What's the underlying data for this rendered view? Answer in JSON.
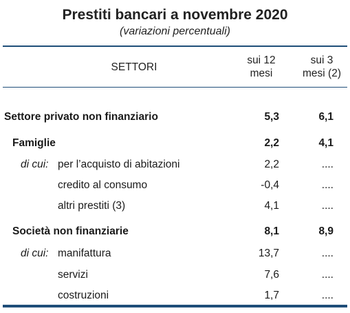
{
  "title": "Prestiti bancari a novembre 2020",
  "subtitle": "(variazioni percentuali)",
  "header": {
    "settori": "SETTORI",
    "col1_line1": "sui 12",
    "col1_line2": "mesi",
    "col2_line1": "sui 3",
    "col2_line2": "mesi (2)"
  },
  "rows": [
    {
      "prefix": "",
      "label": "Settore privato non finanziario",
      "v12": "5,3",
      "v3": "6,1",
      "bold": true
    },
    {
      "prefix": "",
      "label": "Famiglie",
      "v12": "2,2",
      "v3": "4,1",
      "bold": true
    },
    {
      "prefix": "di cui:",
      "label": "per l’acquisto di abitazioni",
      "v12": "2,2",
      "v3": "....",
      "bold": false
    },
    {
      "prefix": "",
      "label": "credito al consumo",
      "v12": "-0,4",
      "v3": "....",
      "bold": false
    },
    {
      "prefix": "",
      "label": "altri prestiti (3)",
      "v12": "4,1",
      "v3": "....",
      "bold": false
    },
    {
      "prefix": "",
      "label": "Società non finanziarie",
      "v12": "8,1",
      "v3": "8,9",
      "bold": true
    },
    {
      "prefix": "di cui:",
      "label": "manifattura",
      "v12": "13,7",
      "v3": "....",
      "bold": false
    },
    {
      "prefix": "",
      "label": "servizi",
      "v12": "7,6",
      "v3": "....",
      "bold": false
    },
    {
      "prefix": "",
      "label": "costruzioni",
      "v12": "1,7",
      "v3": "....",
      "bold": false
    }
  ],
  "colors": {
    "rule": "#1f4e79"
  }
}
